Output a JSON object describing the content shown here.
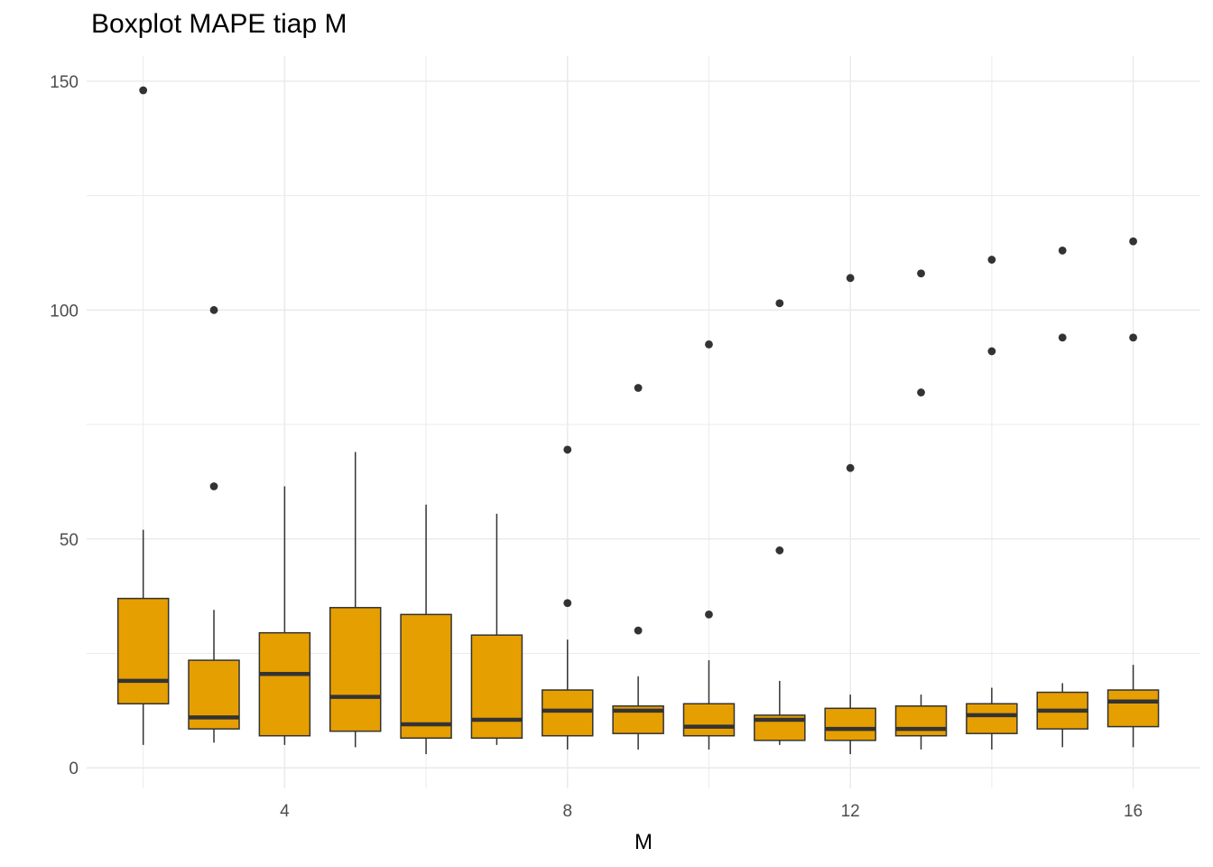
{
  "chart_data": {
    "type": "boxplot",
    "title": "Boxplot MAPE tiap M",
    "xlabel": "M",
    "ylabel": "",
    "xlim": [
      1.2,
      16.95
    ],
    "ylim": [
      -4.5,
      155.5
    ],
    "x_ticks": [
      4,
      8,
      12,
      16
    ],
    "x_minor_ticks": [
      2,
      6,
      10,
      14
    ],
    "y_ticks": [
      0,
      50,
      100,
      150
    ],
    "y_minor_ticks": [
      25,
      75,
      125
    ],
    "grid": true,
    "legend": "none",
    "colors": {
      "box_fill": "#E69F00",
      "box_line": "#333333",
      "grid": "#ebebeb",
      "outlier": "#333333"
    },
    "boxes": [
      {
        "x": 2,
        "lower_whisker": 5,
        "q1": 14,
        "median": 19,
        "q3": 37,
        "upper_whisker": 52,
        "outliers": [
          148
        ]
      },
      {
        "x": 3,
        "lower_whisker": 5.5,
        "q1": 8.5,
        "median": 11,
        "q3": 23.5,
        "upper_whisker": 34.5,
        "outliers": [
          100,
          61.5
        ]
      },
      {
        "x": 4,
        "lower_whisker": 5,
        "q1": 7,
        "median": 20.5,
        "q3": 29.5,
        "upper_whisker": 61.5,
        "outliers": []
      },
      {
        "x": 5,
        "lower_whisker": 4.5,
        "q1": 8,
        "median": 15.5,
        "q3": 35,
        "upper_whisker": 69,
        "outliers": []
      },
      {
        "x": 6,
        "lower_whisker": 3,
        "q1": 6.5,
        "median": 9.5,
        "q3": 33.5,
        "upper_whisker": 57.5,
        "outliers": []
      },
      {
        "x": 7,
        "lower_whisker": 5,
        "q1": 6.5,
        "median": 10.5,
        "q3": 29,
        "upper_whisker": 55.5,
        "outliers": []
      },
      {
        "x": 8,
        "lower_whisker": 4,
        "q1": 7,
        "median": 12.5,
        "q3": 17,
        "upper_whisker": 28,
        "outliers": [
          69.5,
          36
        ]
      },
      {
        "x": 9,
        "lower_whisker": 4,
        "q1": 7.5,
        "median": 12.5,
        "q3": 13.5,
        "upper_whisker": 20,
        "outliers": [
          83,
          30
        ]
      },
      {
        "x": 10,
        "lower_whisker": 4,
        "q1": 7,
        "median": 9,
        "q3": 14,
        "upper_whisker": 23.5,
        "outliers": [
          92.5,
          33.5
        ]
      },
      {
        "x": 11,
        "lower_whisker": 5,
        "q1": 6,
        "median": 10.5,
        "q3": 11.5,
        "upper_whisker": 19,
        "outliers": [
          101.5,
          47.5
        ]
      },
      {
        "x": 12,
        "lower_whisker": 3,
        "q1": 6,
        "median": 8.5,
        "q3": 13,
        "upper_whisker": 16,
        "outliers": [
          107,
          65.5
        ]
      },
      {
        "x": 13,
        "lower_whisker": 4,
        "q1": 7,
        "median": 8.5,
        "q3": 13.5,
        "upper_whisker": 16,
        "outliers": [
          108,
          82
        ]
      },
      {
        "x": 14,
        "lower_whisker": 4,
        "q1": 7.5,
        "median": 11.5,
        "q3": 14,
        "upper_whisker": 17.5,
        "outliers": [
          111,
          91
        ]
      },
      {
        "x": 15,
        "lower_whisker": 4.5,
        "q1": 8.5,
        "median": 12.5,
        "q3": 16.5,
        "upper_whisker": 18.5,
        "outliers": [
          113,
          94
        ]
      },
      {
        "x": 16,
        "lower_whisker": 4.5,
        "q1": 9,
        "median": 14.5,
        "q3": 17,
        "upper_whisker": 22.5,
        "outliers": [
          115,
          94
        ]
      }
    ]
  }
}
